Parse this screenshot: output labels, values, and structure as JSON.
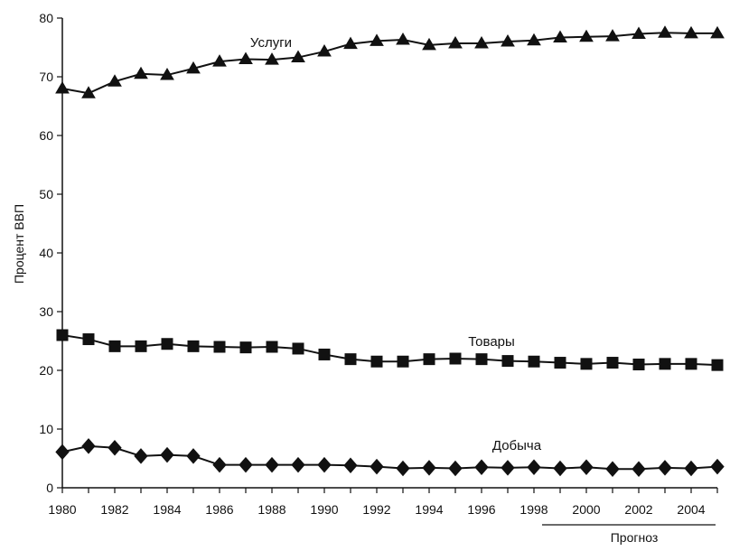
{
  "chart_data": {
    "type": "line",
    "ylabel": "Процент ВВП",
    "xlabel": "",
    "xlim": [
      1980,
      2005
    ],
    "ylim": [
      0,
      80
    ],
    "yticks": [
      0,
      10,
      20,
      30,
      40,
      50,
      60,
      70,
      80
    ],
    "xticks": [
      1980,
      1982,
      1984,
      1986,
      1988,
      1990,
      1992,
      1994,
      1996,
      1998,
      2000,
      2002,
      2004
    ],
    "grid": false,
    "forecast": {
      "label": "Прогноз",
      "from": 1999,
      "to": 2005
    },
    "x": [
      1980,
      1981,
      1982,
      1983,
      1984,
      1985,
      1986,
      1987,
      1988,
      1989,
      1990,
      1991,
      1992,
      1993,
      1994,
      1995,
      1996,
      1997,
      1998,
      1999,
      2000,
      2001,
      2002,
      2003,
      2004,
      2005
    ],
    "series": [
      {
        "name": "Услуги",
        "marker": "triangle",
        "values": [
          68.0,
          67.2,
          69.2,
          70.5,
          70.3,
          71.4,
          72.6,
          73.0,
          72.9,
          73.3,
          74.3,
          75.6,
          76.1,
          76.3,
          75.4,
          75.7,
          75.7,
          76.0,
          76.2,
          76.7,
          76.8,
          76.9,
          77.3,
          77.5,
          77.4,
          77.4
        ]
      },
      {
        "name": "Товары",
        "marker": "square",
        "values": [
          26.0,
          25.3,
          24.1,
          24.1,
          24.5,
          24.1,
          24.0,
          23.9,
          24.0,
          23.7,
          22.7,
          21.9,
          21.5,
          21.5,
          21.9,
          22.0,
          21.9,
          21.6,
          21.5,
          21.3,
          21.1,
          21.3,
          21.0,
          21.1,
          21.1,
          20.9
        ]
      },
      {
        "name": "Добыча",
        "marker": "diamond",
        "values": [
          6.1,
          7.1,
          6.8,
          5.4,
          5.6,
          5.4,
          3.9,
          3.9,
          3.9,
          3.9,
          3.9,
          3.8,
          3.6,
          3.3,
          3.4,
          3.3,
          3.5,
          3.4,
          3.5,
          3.3,
          3.5,
          3.2,
          3.2,
          3.4,
          3.3,
          3.6
        ]
      }
    ]
  }
}
